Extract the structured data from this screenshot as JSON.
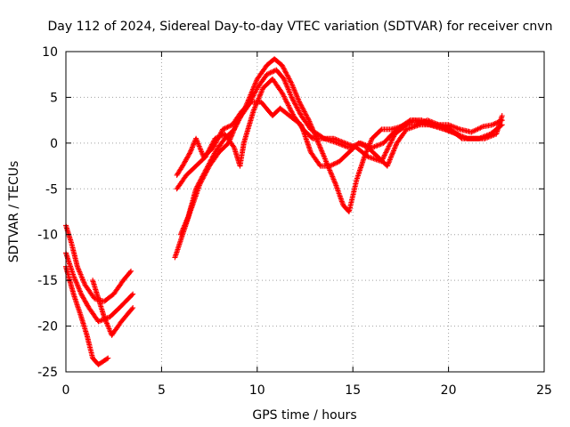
{
  "chart_data": {
    "type": "scatter",
    "title": "Day 112 of 2024, Sidereal Day-to-day VTEC variation (SDTVAR) for receiver cnvn",
    "xlabel": "GPS time / hours",
    "ylabel": "SDTVAR / TECUs",
    "xlim": [
      0,
      25
    ],
    "ylim": [
      -25,
      10
    ],
    "xticks": [
      0,
      5,
      10,
      15,
      20,
      25
    ],
    "yticks": [
      -25,
      -20,
      -15,
      -10,
      -5,
      0,
      5,
      10
    ],
    "grid": true,
    "marker": "+",
    "series_color": "#ff0000",
    "series": [
      {
        "name": "early-a",
        "points": [
          [
            0,
            -9
          ],
          [
            0.3,
            -11
          ],
          [
            0.6,
            -13.5
          ],
          [
            1.0,
            -15.5
          ],
          [
            1.5,
            -17
          ],
          [
            2.0,
            -17.3
          ],
          [
            2.5,
            -16.5
          ],
          [
            3.0,
            -15
          ],
          [
            3.4,
            -14
          ]
        ]
      },
      {
        "name": "early-b",
        "points": [
          [
            0,
            -12
          ],
          [
            0.4,
            -14.5
          ],
          [
            0.8,
            -16.5
          ],
          [
            1.2,
            -18
          ],
          [
            1.7,
            -19.5
          ],
          [
            2.3,
            -19
          ],
          [
            2.8,
            -18
          ],
          [
            3.5,
            -16.5
          ]
        ]
      },
      {
        "name": "early-c",
        "points": [
          [
            0,
            -13.5
          ],
          [
            0.4,
            -16.5
          ],
          [
            0.8,
            -19
          ],
          [
            1.1,
            -21
          ],
          [
            1.4,
            -23.5
          ],
          [
            1.7,
            -24.2
          ],
          [
            2.2,
            -23.5
          ]
        ]
      },
      {
        "name": "early-d",
        "points": [
          [
            1.4,
            -15
          ],
          [
            1.7,
            -17
          ],
          [
            2.0,
            -19
          ],
          [
            2.4,
            -21
          ],
          [
            2.9,
            -19.5
          ],
          [
            3.5,
            -18
          ]
        ]
      },
      {
        "name": "t1",
        "points": [
          [
            5.7,
            -12.5
          ],
          [
            6.1,
            -10
          ],
          [
            6.5,
            -7.5
          ],
          [
            7.0,
            -4.5
          ],
          [
            7.5,
            -2.5
          ],
          [
            8.0,
            -1
          ],
          [
            8.5,
            0
          ],
          [
            9.0,
            2.5
          ],
          [
            9.5,
            4
          ],
          [
            10.0,
            6
          ],
          [
            10.5,
            7.5
          ],
          [
            11.0,
            8
          ],
          [
            11.4,
            7
          ],
          [
            11.8,
            5
          ],
          [
            12.3,
            3
          ],
          [
            12.8,
            1.5
          ],
          [
            13.5,
            0.5
          ],
          [
            14.2,
            0
          ],
          [
            14.8,
            -0.5
          ],
          [
            15.4,
            0
          ],
          [
            16.0,
            -0.5
          ],
          [
            16.6,
            0
          ],
          [
            17.3,
            1.5
          ],
          [
            18.0,
            2.5
          ],
          [
            18.6,
            2.5
          ],
          [
            19.2,
            2
          ],
          [
            19.8,
            1.5
          ],
          [
            20.4,
            1
          ],
          [
            21.0,
            0.5
          ],
          [
            21.6,
            0.5
          ],
          [
            22.2,
            1
          ],
          [
            22.8,
            2
          ]
        ]
      },
      {
        "name": "t2",
        "points": [
          [
            6.0,
            -10
          ],
          [
            6.4,
            -8
          ],
          [
            6.8,
            -5
          ],
          [
            7.3,
            -3
          ],
          [
            7.8,
            -1
          ],
          [
            8.3,
            0.5
          ],
          [
            8.8,
            1.5
          ],
          [
            9.4,
            4
          ],
          [
            10.0,
            7
          ],
          [
            10.5,
            8.5
          ],
          [
            10.9,
            9.2
          ],
          [
            11.3,
            8.5
          ],
          [
            11.8,
            6.5
          ],
          [
            12.2,
            4.5
          ],
          [
            12.7,
            2.5
          ],
          [
            13.2,
            0
          ],
          [
            13.6,
            -2
          ],
          [
            14.1,
            -4.5
          ],
          [
            14.5,
            -6.8
          ],
          [
            14.8,
            -7.5
          ],
          [
            15.2,
            -4
          ],
          [
            15.6,
            -1.5
          ],
          [
            16.0,
            0.5
          ],
          [
            16.5,
            1.5
          ],
          [
            17.0,
            1.5
          ],
          [
            17.5,
            1.8
          ],
          [
            18.2,
            2.5
          ],
          [
            19.0,
            2
          ],
          [
            19.8,
            1.5
          ],
          [
            20.5,
            1
          ]
        ]
      },
      {
        "name": "t3",
        "points": [
          [
            5.8,
            -3.5
          ],
          [
            6.1,
            -2.5
          ],
          [
            6.5,
            -1
          ],
          [
            6.8,
            0.5
          ],
          [
            7.2,
            -1.5
          ],
          [
            7.7,
            -0.5
          ],
          [
            8.2,
            1.5
          ],
          [
            8.7,
            2
          ],
          [
            9.2,
            3.5
          ],
          [
            9.7,
            4.5
          ],
          [
            10.2,
            4.5
          ],
          [
            10.8,
            3
          ],
          [
            11.2,
            3.8
          ],
          [
            11.8,
            2.8
          ],
          [
            12.3,
            2
          ],
          [
            12.8,
            -1
          ],
          [
            13.3,
            -2.5
          ],
          [
            13.8,
            -2.5
          ],
          [
            14.3,
            -2
          ],
          [
            14.8,
            -1
          ],
          [
            15.3,
            0
          ],
          [
            15.8,
            -0.5
          ],
          [
            16.3,
            -1.5
          ],
          [
            16.8,
            -2.5
          ],
          [
            17.3,
            0
          ],
          [
            17.8,
            1.5
          ],
          [
            18.5,
            2
          ],
          [
            19.3,
            2
          ],
          [
            20.0,
            2
          ],
          [
            20.6,
            1.5
          ],
          [
            21.2,
            1.2
          ],
          [
            21.8,
            1.8
          ],
          [
            22.3,
            2
          ],
          [
            22.8,
            2.5
          ]
        ]
      },
      {
        "name": "t4",
        "points": [
          [
            5.8,
            -5
          ],
          [
            6.3,
            -3.5
          ],
          [
            6.8,
            -2.5
          ],
          [
            7.3,
            -1.5
          ],
          [
            7.8,
            0.5
          ],
          [
            8.3,
            1
          ],
          [
            8.8,
            -0.5
          ],
          [
            9.1,
            -2.5
          ],
          [
            9.3,
            0
          ],
          [
            9.8,
            3.5
          ],
          [
            10.3,
            6
          ],
          [
            10.8,
            7
          ],
          [
            11.3,
            5.5
          ],
          [
            11.9,
            3
          ],
          [
            12.4,
            1.5
          ],
          [
            12.9,
            0.5
          ],
          [
            13.4,
            0.5
          ],
          [
            14.0,
            0.5
          ],
          [
            14.6,
            0
          ],
          [
            15.2,
            -0.5
          ],
          [
            15.8,
            -1.5
          ],
          [
            16.5,
            -2
          ],
          [
            17.2,
            1
          ],
          [
            17.8,
            2
          ],
          [
            18.3,
            2
          ],
          [
            18.9,
            2.5
          ],
          [
            19.5,
            2
          ],
          [
            20.1,
            1.5
          ],
          [
            20.7,
            0.5
          ],
          [
            21.3,
            0.5
          ],
          [
            21.9,
            0.5
          ],
          [
            22.5,
            1
          ],
          [
            22.8,
            3
          ]
        ]
      }
    ]
  }
}
